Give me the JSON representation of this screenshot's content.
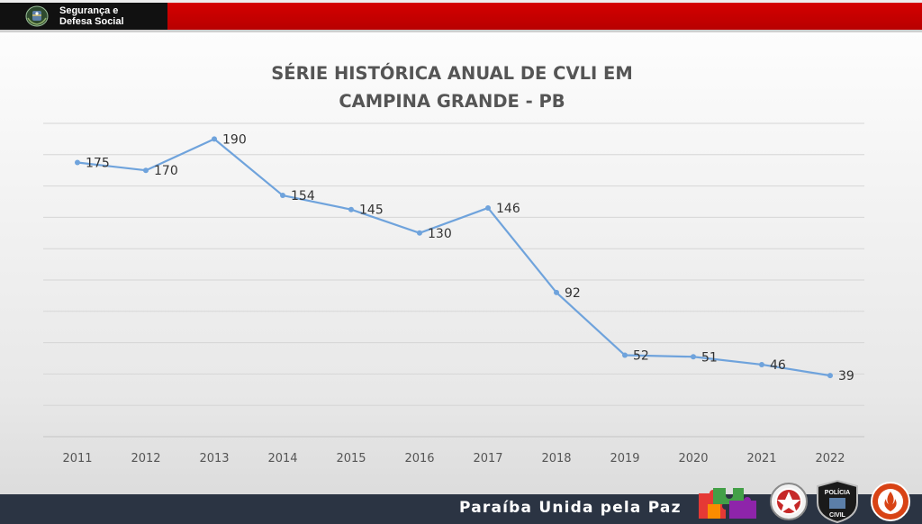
{
  "header": {
    "org_line1": "Segurança e",
    "org_line2": "Defesa Social",
    "emblem_icon": "paraiba-coat-of-arms-icon",
    "dark_color": "#111111",
    "red_color": "#c80000"
  },
  "footer": {
    "slogan": "Paraíba Unida pela Paz",
    "background": "#2b3443",
    "badges": [
      "puzzle-pieces-logo",
      "military-police-badge",
      "civil-police-badge",
      "fire-department-badge"
    ],
    "civil_police_lines": [
      "POLÍCIA",
      "CIVIL"
    ]
  },
  "chart_data": {
    "type": "line",
    "title_lines": [
      "SÉRIE HISTÓRICA ANUAL DE CVLI EM",
      "CAMPINA GRANDE - PB"
    ],
    "categories": [
      "2011",
      "2012",
      "2013",
      "2014",
      "2015",
      "2016",
      "2017",
      "2018",
      "2019",
      "2020",
      "2021",
      "2022"
    ],
    "series": [
      {
        "values": [
          175,
          170,
          190,
          154,
          145,
          130,
          146,
          92,
          52,
          51,
          46,
          39
        ],
        "color": "#6fa3dc"
      }
    ],
    "xlabel": "",
    "ylabel": "",
    "ylim": [
      0,
      200
    ],
    "y_ticks_shown": false,
    "grid": true,
    "legend": "none",
    "data_labels": true
  }
}
